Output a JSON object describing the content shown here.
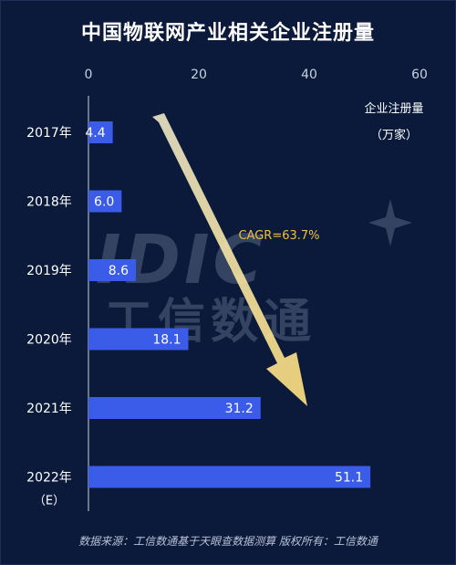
{
  "chart_data": {
    "type": "bar",
    "orientation": "horizontal",
    "title": "中国物联网产业相关企业注册量",
    "unit_label_line1": "企业注册量",
    "unit_label_line2": "（万家）",
    "categories": [
      {
        "label": "2017年",
        "sub": ""
      },
      {
        "label": "2018年",
        "sub": ""
      },
      {
        "label": "2019年",
        "sub": ""
      },
      {
        "label": "2020年",
        "sub": ""
      },
      {
        "label": "2021年",
        "sub": ""
      },
      {
        "label": "2022年",
        "sub": "（E）"
      }
    ],
    "values": [
      4.4,
      6.0,
      8.6,
      18.1,
      31.2,
      51.1
    ],
    "value_labels": [
      "4.4",
      "6.0",
      "8.6",
      "18.1",
      "31.2",
      "51.1"
    ],
    "xlim": [
      0,
      60
    ],
    "ticks": [
      "0",
      "20",
      "40",
      "60"
    ],
    "tick_values": [
      0,
      20,
      40,
      60
    ],
    "annotation": "CAGR=63.7%",
    "grid": false,
    "colors": {
      "background": "#0b1a3a",
      "bar": "#3a5ce8",
      "arrow": "#f3d77a",
      "annotation": "#f0c040",
      "axis": "#c9d1e0"
    }
  },
  "watermark": "工信数通",
  "watermark_logo": "IDIC",
  "footer": "数据来源：工信数通基于天眼查数据测算    版权所有：工信数通"
}
